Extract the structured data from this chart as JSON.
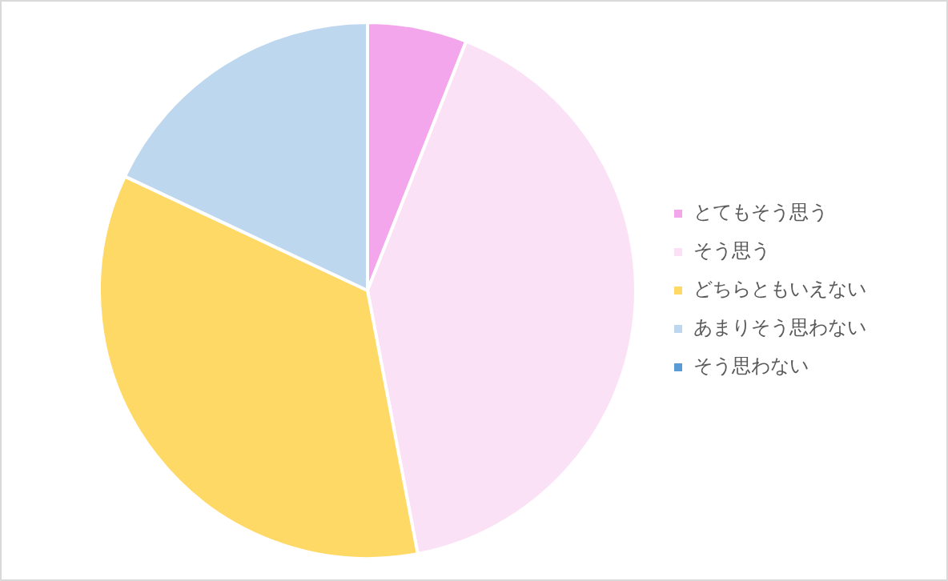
{
  "chart_data": {
    "type": "pie",
    "categories": [
      "とてもそう思う",
      "そう思う",
      "どちらともいえない",
      "あまりそう思わない",
      "そう思わない"
    ],
    "values": [
      6,
      41,
      35,
      18,
      0
    ],
    "colors": [
      "#f4a6ec",
      "#fbe1f5",
      "#ffd966",
      "#bdd7ee",
      "#5b9bd5"
    ],
    "legend": "right"
  }
}
